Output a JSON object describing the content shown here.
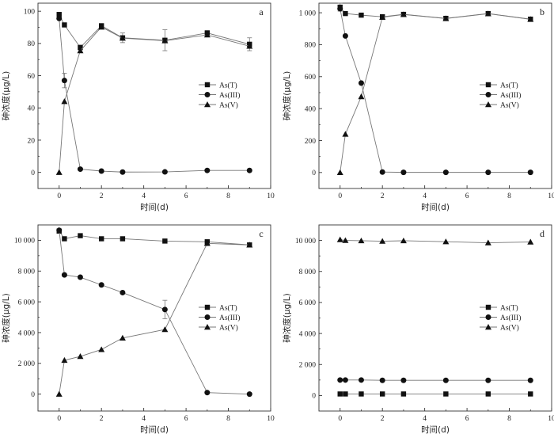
{
  "figure": {
    "legend_entries": [
      "As(T)",
      "As(III)",
      "As(V)"
    ],
    "x_title": "时间(d)",
    "y_title": "砷浓度(μg/L)"
  },
  "chart_data": [
    {
      "type": "line",
      "panel": "a",
      "xlabel": "时间(d)",
      "ylabel": "砷浓度(μg/L)",
      "xlim": [
        -1,
        10
      ],
      "ylim": [
        -10,
        105
      ],
      "xticks": [
        0,
        2,
        4,
        6,
        8,
        10
      ],
      "xtick_labels": [
        "0",
        "2",
        "4",
        "6",
        "8",
        "10"
      ],
      "yticks": [
        0,
        20,
        40,
        60,
        80,
        100
      ],
      "ytick_labels": [
        "0",
        "20",
        "40",
        "60",
        "80",
        "100"
      ],
      "legend_position": "right",
      "series": [
        {
          "name": "As(T)",
          "marker": "square",
          "x": [
            0,
            0.25,
            1,
            2,
            3,
            5,
            7,
            9
          ],
          "y": [
            98,
            91.5,
            77.5,
            91,
            83.5,
            82,
            86.5,
            79.5
          ],
          "err": [
            0,
            0,
            1.5,
            1,
            3,
            6.5,
            1.5,
            4
          ]
        },
        {
          "name": "As(III)",
          "marker": "circle",
          "x": [
            0,
            0.25,
            1,
            2,
            3,
            5,
            7,
            9
          ],
          "y": [
            95.5,
            57,
            2,
            0.8,
            0.2,
            0.3,
            1.2,
            1.2
          ],
          "err": [
            0,
            4.5,
            0,
            0,
            0,
            0,
            0,
            0
          ]
        },
        {
          "name": "As(V)",
          "marker": "triangle",
          "x": [
            0,
            0.25,
            1,
            2,
            3,
            5,
            7,
            9
          ],
          "y": [
            0,
            44,
            75.5,
            90.2,
            83.3,
            81.7,
            85.3,
            78.3
          ],
          "err": [
            0,
            0,
            0,
            0,
            0,
            0,
            0,
            0
          ]
        }
      ]
    },
    {
      "type": "line",
      "panel": "b",
      "xlabel": "时间(d)",
      "ylabel": "砷浓度(μg/L)",
      "xlim": [
        -1,
        10
      ],
      "ylim": [
        -100,
        1060
      ],
      "xticks": [
        0,
        2,
        4,
        6,
        8,
        10
      ],
      "xtick_labels": [
        "0",
        "2",
        "4",
        "6",
        "8",
        "10"
      ],
      "yticks": [
        0,
        200,
        400,
        600,
        800,
        1000
      ],
      "ytick_labels": [
        "0",
        "200",
        "400",
        "600",
        "800",
        "1 000"
      ],
      "legend_position": "right",
      "series": [
        {
          "name": "As(T)",
          "marker": "square",
          "x": [
            0,
            0.25,
            1,
            2,
            3,
            5,
            7,
            9
          ],
          "y": [
            1035,
            995,
            985,
            975,
            990,
            965,
            995,
            960
          ],
          "err": [
            25,
            0,
            0,
            0,
            8,
            8,
            10,
            8
          ]
        },
        {
          "name": "As(III)",
          "marker": "circle",
          "x": [
            0,
            0.25,
            1,
            2,
            3,
            5,
            7,
            9
          ],
          "y": [
            1025,
            855,
            560,
            3,
            1,
            1,
            1,
            1
          ],
          "err": [
            10,
            0,
            0,
            0,
            0,
            0,
            0,
            0
          ]
        },
        {
          "name": "As(V)",
          "marker": "triangle",
          "x": [
            0,
            0.25,
            1,
            2,
            3,
            5,
            7,
            9
          ],
          "y": [
            0,
            240,
            475,
            972,
            989,
            964,
            994,
            959
          ],
          "err": [
            0,
            0,
            0,
            0,
            0,
            0,
            0,
            0
          ]
        }
      ]
    },
    {
      "type": "line",
      "panel": "c",
      "xlabel": "时间(d)",
      "ylabel": "砷浓度(μg/L)",
      "xlim": [
        -1,
        10
      ],
      "ylim": [
        -1100,
        11000
      ],
      "xticks": [
        0,
        2,
        4,
        6,
        8,
        10
      ],
      "xtick_labels": [
        "0",
        "2",
        "4",
        "6",
        "8",
        "10"
      ],
      "yticks": [
        0,
        2000,
        4000,
        6000,
        8000,
        10000
      ],
      "ytick_labels": [
        "0",
        "2 000",
        "4 000",
        "6 000",
        "8 000",
        "10 000"
      ],
      "legend_position": "right",
      "series": [
        {
          "name": "As(T)",
          "marker": "square",
          "x": [
            0,
            0.25,
            1,
            2,
            3,
            5,
            7,
            9
          ],
          "y": [
            10600,
            10100,
            10300,
            10100,
            10100,
            9950,
            9900,
            9700
          ],
          "err": [
            120,
            0,
            80,
            60,
            60,
            50,
            150,
            80
          ]
        },
        {
          "name": "As(III)",
          "marker": "circle",
          "x": [
            0,
            0.25,
            1,
            2,
            3,
            5,
            7,
            9
          ],
          "y": [
            10650,
            7750,
            7600,
            7100,
            6600,
            5500,
            100,
            0
          ],
          "err": [
            0,
            0,
            0,
            0,
            0,
            600,
            0,
            0
          ]
        },
        {
          "name": "As(V)",
          "marker": "triangle",
          "x": [
            0,
            0.25,
            1,
            2,
            3,
            5,
            7,
            9
          ],
          "y": [
            0,
            2200,
            2450,
            2900,
            3650,
            4200,
            9800,
            9700
          ],
          "err": [
            0,
            0,
            0,
            0,
            0,
            0,
            0,
            0
          ]
        }
      ]
    },
    {
      "type": "line",
      "panel": "d",
      "xlabel": "时间(d)",
      "ylabel": "砷浓度(μg/L)",
      "xlim": [
        -1,
        10
      ],
      "ylim": [
        -1000,
        11000
      ],
      "xticks": [
        0,
        2,
        4,
        6,
        8,
        10
      ],
      "xtick_labels": [
        "0",
        "2",
        "4",
        "6",
        "8",
        "10"
      ],
      "yticks": [
        0,
        2000,
        4000,
        6000,
        8000,
        10000
      ],
      "ytick_labels": [
        "0",
        "2 000",
        "4 000",
        "6 000",
        "8 000",
        "10 000"
      ],
      "legend_position": "right",
      "series": [
        {
          "name": "As(T)",
          "marker": "square",
          "x": [
            0,
            0.25,
            1,
            2,
            3,
            5,
            7,
            9
          ],
          "y": [
            100,
            100,
            100,
            100,
            100,
            100,
            100,
            100
          ],
          "err": [
            0,
            0,
            0,
            0,
            0,
            0,
            0,
            0
          ]
        },
        {
          "name": "As(III)",
          "marker": "circle",
          "x": [
            0,
            0.25,
            1,
            2,
            3,
            5,
            7,
            9
          ],
          "y": [
            1000,
            1000,
            1000,
            980,
            980,
            980,
            980,
            980
          ],
          "err": [
            0,
            0,
            0,
            0,
            0,
            0,
            0,
            0
          ]
        },
        {
          "name": "As(V)",
          "marker": "triangle",
          "x": [
            0,
            0.25,
            1,
            2,
            3,
            5,
            7,
            9
          ],
          "y": [
            10050,
            10000,
            9980,
            9950,
            9980,
            9920,
            9850,
            9900
          ],
          "err": [
            0,
            0,
            0,
            0,
            0,
            0,
            0,
            0
          ]
        }
      ]
    }
  ]
}
